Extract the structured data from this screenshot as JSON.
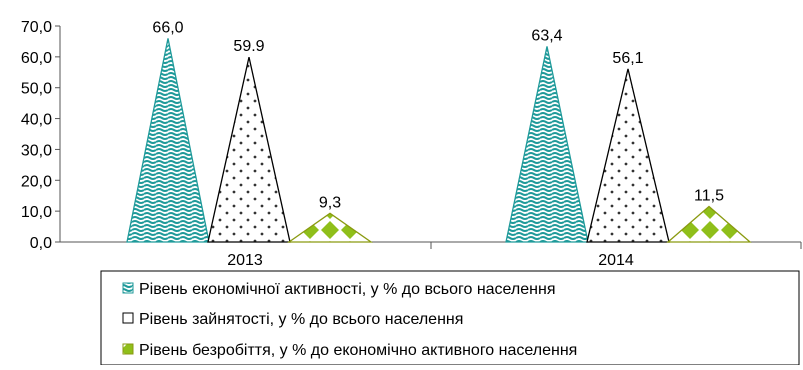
{
  "chart_data": {
    "type": "bar",
    "categories": [
      "2013",
      "2014"
    ],
    "series": [
      {
        "name": "Рівень економічної активності, у % до всього населення",
        "values": [
          66.0,
          63.4
        ],
        "labels": [
          "66,0",
          "63,4"
        ],
        "color": "#1f9a9a"
      },
      {
        "name": "Рівень зайнятості, у % до всього населення",
        "values": [
          59.9,
          56.1
        ],
        "labels": [
          "59.9",
          "56,1"
        ],
        "color": "#000000"
      },
      {
        "name": "Рівень безробіття, у % до економічно активного населення",
        "values": [
          9.3,
          11.5
        ],
        "labels": [
          "9,3",
          "11,5"
        ],
        "color": "#8fbf1a"
      }
    ],
    "y_ticks": [
      "0,0",
      "10,0",
      "20,0",
      "30,0",
      "40,0",
      "50,0",
      "60,0",
      "70,0"
    ],
    "ylim": [
      0,
      70
    ],
    "grid": false,
    "legend_position": "bottom",
    "title": "",
    "xlabel": "",
    "ylabel": ""
  }
}
